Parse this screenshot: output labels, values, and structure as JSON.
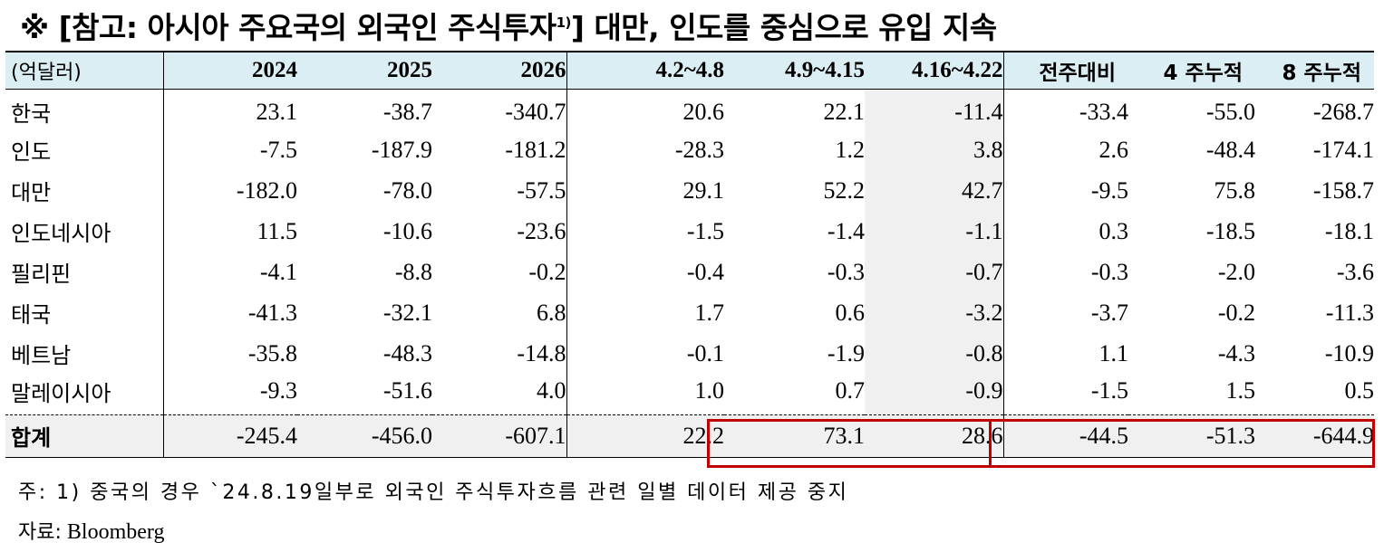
{
  "title": {
    "text": "※ [참고: 아시아 주요국의 외국인 주식투자",
    "footnote_mark": "1)",
    "suffix": "] 대만, 인도를 중심으로 유입 지속"
  },
  "table": {
    "unit_label": "(억달러)",
    "columns": [
      "2024",
      "2025",
      "2026",
      "4.2~4.8",
      "4.9~4.15",
      "4.16~4.22",
      "전주대비",
      "4 주누적",
      "8 주누적"
    ],
    "rows": [
      {
        "name": "한국",
        "values": [
          "23.1",
          "-38.7",
          "-340.7",
          "20.6",
          "22.1",
          "-11.4",
          "-33.4",
          "-55.0",
          "-268.7"
        ]
      },
      {
        "name": "인도",
        "values": [
          "-7.5",
          "-187.9",
          "-181.2",
          "-28.3",
          "1.2",
          "3.8",
          "2.6",
          "-48.4",
          "-174.1"
        ]
      },
      {
        "name": "대만",
        "values": [
          "-182.0",
          "-78.0",
          "-57.5",
          "29.1",
          "52.2",
          "42.7",
          "-9.5",
          "75.8",
          "-158.7"
        ]
      },
      {
        "name": "인도네시아",
        "values": [
          "11.5",
          "-10.6",
          "-23.6",
          "-1.5",
          "-1.4",
          "-1.1",
          "0.3",
          "-18.5",
          "-18.1"
        ]
      },
      {
        "name": "필리핀",
        "values": [
          "-4.1",
          "-8.8",
          "-0.2",
          "-0.4",
          "-0.3",
          "-0.7",
          "-0.3",
          "-2.0",
          "-3.6"
        ]
      },
      {
        "name": "태국",
        "values": [
          "-41.3",
          "-32.1",
          "6.8",
          "1.7",
          "0.6",
          "-3.2",
          "-3.7",
          "-0.2",
          "-11.3"
        ]
      },
      {
        "name": "베트남",
        "values": [
          "-35.8",
          "-48.3",
          "-14.8",
          "-0.1",
          "-1.9",
          "-0.8",
          "1.1",
          "-4.3",
          "-10.9"
        ]
      },
      {
        "name": "말레이시아",
        "values": [
          "-9.3",
          "-51.6",
          "4.0",
          "1.0",
          "0.7",
          "-0.9",
          "-1.5",
          "1.5",
          "0.5"
        ]
      }
    ],
    "total": {
      "name": "합계",
      "values": [
        "-245.4",
        "-456.0",
        "-607.1",
        "22.2",
        "73.1",
        "28.6",
        "-44.5",
        "-51.3",
        "-644.9"
      ]
    }
  },
  "notes": {
    "note1": "주: 1) 중국의 경우 `24.8.19일부로 외국인 주식투자흐름 관련 일별 데이터 제공 중지",
    "source_label": "자료:",
    "source_value": " Bloomberg"
  },
  "colors": {
    "header_bg": "#daeef3",
    "shade_bg": "#f0f0f0",
    "highlight_border": "#c00000"
  }
}
